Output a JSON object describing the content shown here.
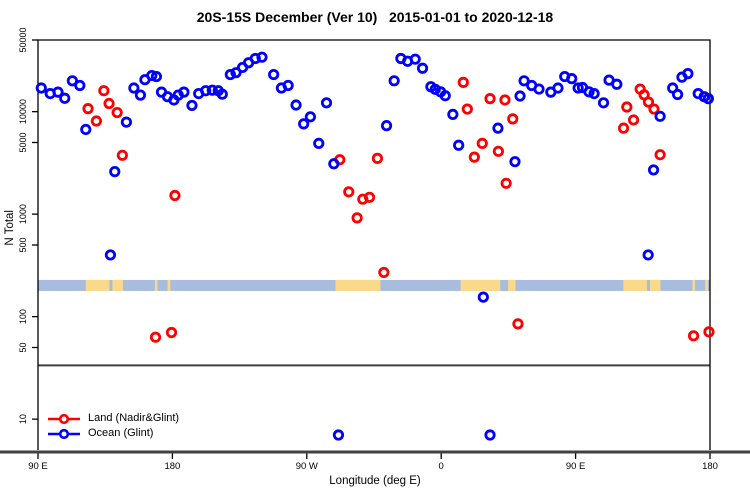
{
  "title": "20S-15S December (Ver 10)   2015-01-01 to 2020-12-18",
  "x_axis": {
    "label": "Longitude (deg E)",
    "ticks": [
      {
        "lon": 90,
        "label": "90 E"
      },
      {
        "lon": 180,
        "label": "180"
      },
      {
        "lon": 270,
        "label": "90 W"
      },
      {
        "lon": 360,
        "label": "0"
      },
      {
        "lon": 450,
        "label": "90 E"
      },
      {
        "lon": 540,
        "label": "180"
      }
    ]
  },
  "y_axis": {
    "label": "N Total",
    "ticks": [
      {
        "value": 10,
        "label": "10"
      },
      {
        "value": 50,
        "label": "50"
      },
      {
        "value": 100,
        "label": "100"
      },
      {
        "value": 500,
        "label": "500"
      },
      {
        "value": 1000,
        "label": "1000"
      },
      {
        "value": 5000,
        "label": "5000"
      },
      {
        "value": 10000,
        "label": "10000"
      },
      {
        "value": 50000,
        "label": "50000"
      }
    ]
  },
  "legend": [
    {
      "label": "Land (Nadir&Glint)",
      "color": "#ff0000"
    },
    {
      "label": "Ocean (Glint)",
      "color": "#0000ff"
    }
  ],
  "colors": {
    "land_series": "#ff0000",
    "ocean_series": "#0000ff",
    "band_ocean": "#a8bddd",
    "band_land": "#fad98b",
    "axis": "#000000",
    "heavy_line": "#404040"
  },
  "chart_data": {
    "type": "scatter",
    "title": "20S-15S December (Ver 10)   2015-01-01 to 2020-12-18",
    "xlabel": "Longitude (deg E)",
    "ylabel": "N Total",
    "x_domain": [
      90,
      540
    ],
    "y_domain": [
      5,
      50000
    ],
    "y_scale": "log",
    "grid": false,
    "reference_line_y": 33.5,
    "map_band": {
      "value_range": [
        178,
        228
      ],
      "land_segments_deg_east": [
        [
          122,
          137.8
        ],
        [
          139.8,
          146.8
        ],
        [
          168.3,
          170
        ],
        [
          176.8,
          178.6
        ],
        [
          289.2,
          319.3
        ],
        [
          373,
          399.5
        ],
        [
          404.8,
          409.8
        ],
        [
          482,
          497.8
        ],
        [
          499.8,
          506.8
        ],
        [
          528.3,
          530
        ],
        [
          536.8,
          538.6
        ]
      ]
    },
    "series": [
      {
        "name": "Land (Nadir&Glint)",
        "color": "#ff0000",
        "points": [
          [
            123.5,
            10700
          ],
          [
            129.1,
            8100
          ],
          [
            134.1,
            16000
          ],
          [
            137.6,
            12000
          ],
          [
            143,
            9800
          ],
          [
            146.5,
            3750
          ],
          [
            168.7,
            63
          ],
          [
            179.4,
            70
          ],
          [
            181.7,
            1520
          ],
          [
            292.1,
            3400
          ],
          [
            298.1,
            1650
          ],
          [
            303.7,
            920
          ],
          [
            307.5,
            1400
          ],
          [
            312,
            1460
          ],
          [
            317.3,
            3500
          ],
          [
            321.6,
            270
          ],
          [
            374.8,
            19300
          ],
          [
            377.5,
            10600
          ],
          [
            382.2,
            3600
          ],
          [
            387.5,
            4900
          ],
          [
            392.7,
            13400
          ],
          [
            398.3,
            4100
          ],
          [
            402.7,
            13000
          ],
          [
            403.5,
            2000
          ],
          [
            407.9,
            8500
          ],
          [
            411.4,
            85
          ],
          [
            482.1,
            6900
          ],
          [
            484.3,
            11100
          ],
          [
            488.8,
            8300
          ],
          [
            493.2,
            16600
          ],
          [
            495.9,
            14600
          ],
          [
            498.8,
            12400
          ],
          [
            502.5,
            10600
          ],
          [
            506.6,
            3800
          ],
          [
            529,
            65
          ],
          [
            539.3,
            71
          ]
        ]
      },
      {
        "name": "Ocean (Glint)",
        "color": "#0000ff",
        "points": [
          [
            92.2,
            17000
          ],
          [
            98.2,
            15000
          ],
          [
            103.4,
            15500
          ],
          [
            107.9,
            13500
          ],
          [
            113,
            20000
          ],
          [
            118,
            18000
          ],
          [
            122,
            6700
          ],
          [
            138.5,
            400
          ],
          [
            141.4,
            2600
          ],
          [
            149.2,
            7900
          ],
          [
            154.2,
            17000
          ],
          [
            158.6,
            14500
          ],
          [
            161.6,
            20500
          ],
          [
            166.2,
            22500
          ],
          [
            169.3,
            22000
          ],
          [
            172.7,
            15500
          ],
          [
            176.7,
            14000
          ],
          [
            181,
            13000
          ],
          [
            183.9,
            14500
          ],
          [
            187.7,
            15500
          ],
          [
            193.1,
            11500
          ],
          [
            197.6,
            15000
          ],
          [
            202.3,
            16000
          ],
          [
            206.7,
            16200
          ],
          [
            210.7,
            16000
          ],
          [
            213.4,
            14800
          ],
          [
            218.8,
            23000
          ],
          [
            222.6,
            24000
          ],
          [
            227,
            27000
          ],
          [
            231,
            30000
          ],
          [
            235.5,
            33000
          ],
          [
            240,
            34000
          ],
          [
            247.8,
            23000
          ],
          [
            253,
            17000
          ],
          [
            257.5,
            18000
          ],
          [
            262.8,
            11600
          ],
          [
            267.9,
            7600
          ],
          [
            272.4,
            8900
          ],
          [
            278,
            4900
          ],
          [
            283.2,
            12200
          ],
          [
            288.1,
            3100
          ],
          [
            291.2,
            7
          ],
          [
            323.4,
            7300
          ],
          [
            328.5,
            20000
          ],
          [
            333,
            33000
          ],
          [
            337.5,
            31000
          ],
          [
            342.6,
            32500
          ],
          [
            347.5,
            26500
          ],
          [
            353.1,
            17500
          ],
          [
            356,
            16500
          ],
          [
            359.6,
            15600
          ],
          [
            362.7,
            14300
          ],
          [
            367.8,
            9400
          ],
          [
            371.7,
            4700
          ],
          [
            388.2,
            155
          ],
          [
            392.7,
            7
          ],
          [
            398,
            6900
          ],
          [
            409.4,
            3250
          ],
          [
            412.8,
            14200
          ],
          [
            415.5,
            20000
          ],
          [
            420.6,
            18000
          ],
          [
            425.5,
            16600
          ],
          [
            433.4,
            15500
          ],
          [
            438.2,
            17000
          ],
          [
            442.7,
            22000
          ],
          [
            447.4,
            21000
          ],
          [
            451.7,
            17000
          ],
          [
            454.6,
            17200
          ],
          [
            459,
            15600
          ],
          [
            462.4,
            15000
          ],
          [
            468.7,
            12200
          ],
          [
            472.4,
            20300
          ],
          [
            477.6,
            18500
          ],
          [
            498.6,
            400
          ],
          [
            502.2,
            2700
          ],
          [
            506.6,
            9000
          ],
          [
            515,
            17000
          ],
          [
            518.3,
            14700
          ],
          [
            521.2,
            21700
          ],
          [
            525.2,
            23500
          ],
          [
            532.1,
            15000
          ],
          [
            536.1,
            14000
          ],
          [
            538.9,
            13400
          ]
        ]
      }
    ]
  }
}
